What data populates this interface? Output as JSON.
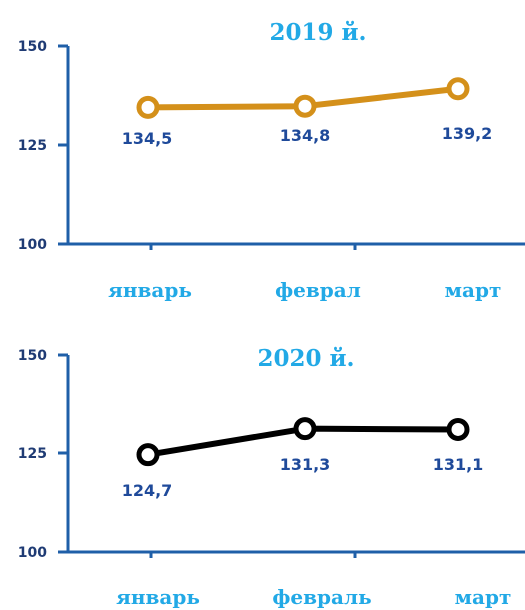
{
  "chart_data": [
    {
      "type": "line",
      "title": "2019 й.",
      "categories": [
        "январь",
        "феврал",
        "март"
      ],
      "series": [
        {
          "values": [
            134.5,
            134.8,
            139.2
          ],
          "labels": [
            "134,5",
            "134,8",
            "139,2"
          ]
        }
      ],
      "ylim": [
        100,
        150
      ],
      "yticks": [
        "100",
        "125",
        "150"
      ],
      "grid": false,
      "colors": {
        "line": "#d4901a",
        "axis": "#1f5fa8",
        "label": "#1f4a9a",
        "category": "#22a9e6",
        "title": "#22a9e6"
      }
    },
    {
      "type": "line",
      "title": "2020 й.",
      "categories": [
        "январь",
        "февраль",
        "март"
      ],
      "series": [
        {
          "values": [
            124.7,
            131.3,
            131.1
          ],
          "labels": [
            "124,7",
            "131,3",
            "131,1"
          ]
        }
      ],
      "ylim": [
        100,
        150
      ],
      "yticks": [
        "100",
        "125",
        "150"
      ],
      "grid": false,
      "colors": {
        "line": "#000000",
        "axis": "#1f5fa8",
        "label": "#1f4a9a",
        "category": "#22a9e6",
        "title": "#22a9e6"
      }
    }
  ]
}
